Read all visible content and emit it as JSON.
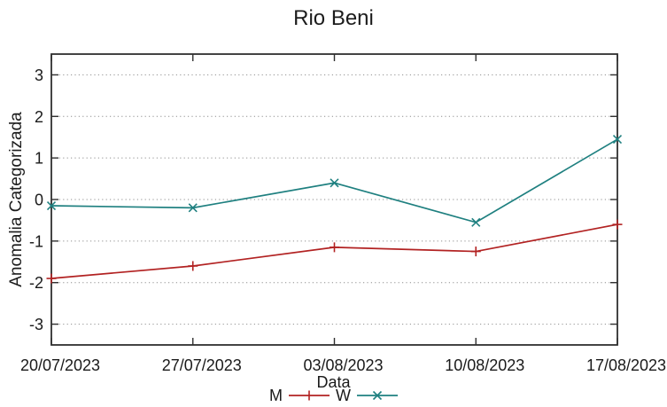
{
  "title": "Rio Beni",
  "chart_data": {
    "type": "line",
    "title": "Rio Beni",
    "xlabel": "Data",
    "ylabel": "Anomalia Categorizada",
    "categories": [
      "20/07/2023",
      "27/07/2023",
      "03/08/2023",
      "10/08/2023",
      "17/08/2023"
    ],
    "series": [
      {
        "name": "M",
        "color": "#b22222",
        "marker": "plus",
        "values": [
          -1.9,
          -1.6,
          -1.15,
          -1.25,
          -0.6
        ]
      },
      {
        "name": "W",
        "color": "#1f8080",
        "marker": "cross",
        "values": [
          -0.15,
          -0.2,
          0.4,
          -0.55,
          1.45
        ]
      }
    ],
    "ylim": [
      -3.5,
      3.5
    ],
    "yticks": [
      3,
      2,
      1,
      0,
      -1,
      -2,
      -3
    ],
    "grid": "horizontal-dotted",
    "legend_position": "bottom-center",
    "colors": {
      "grid": "#8e8e8e",
      "border": "#2f2f2f",
      "text": "#1a1a1a"
    }
  }
}
